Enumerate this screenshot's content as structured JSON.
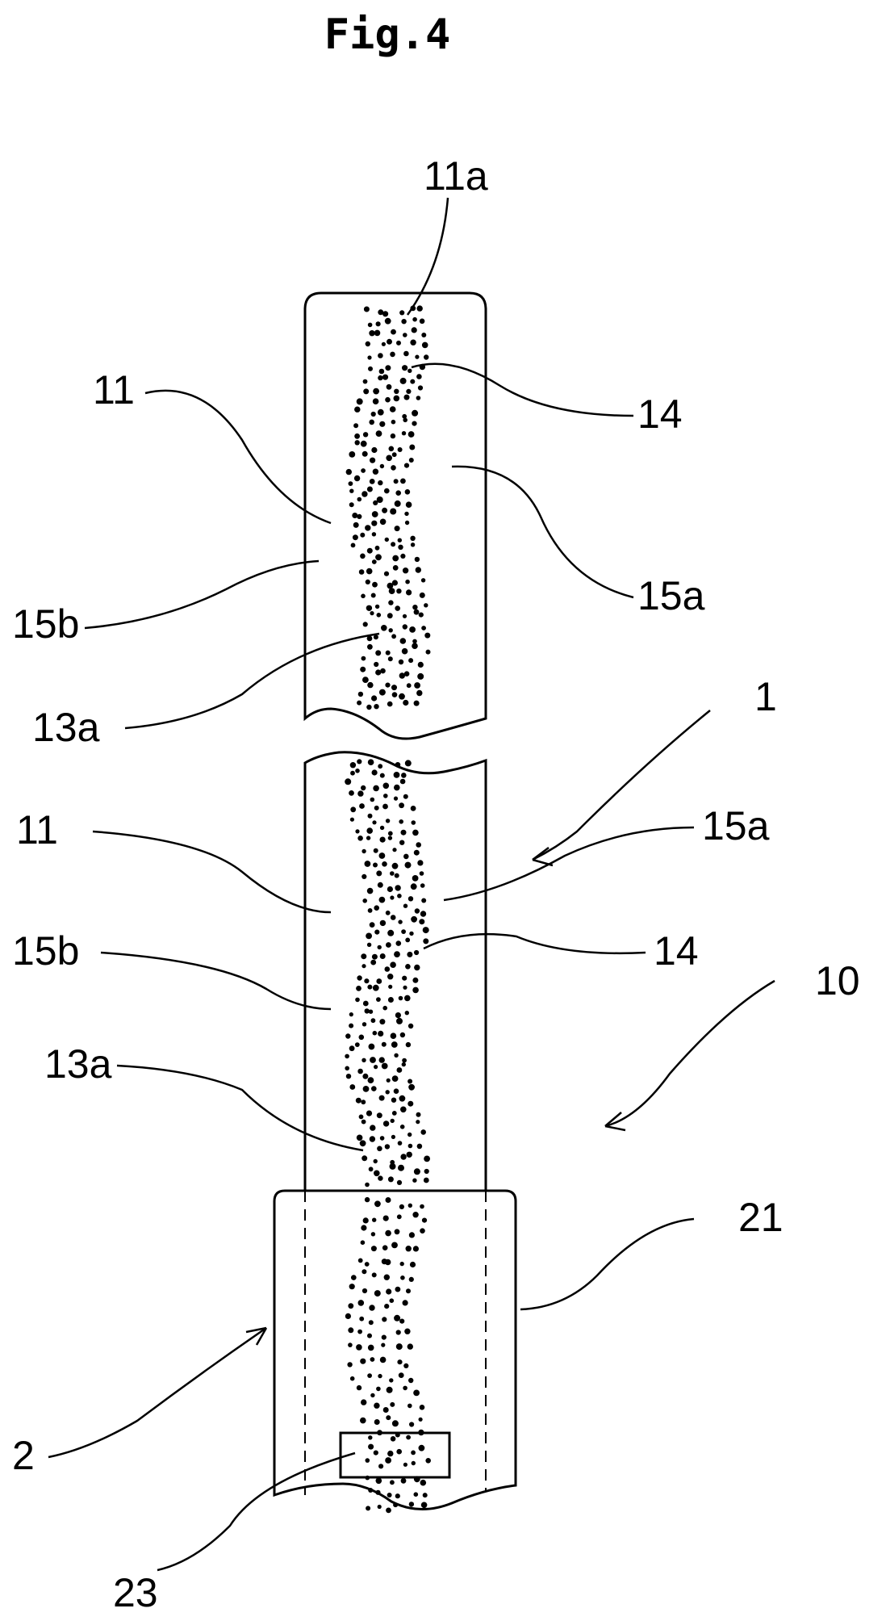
{
  "figure": {
    "title": "Fig.4",
    "labels": {
      "l11a": "11a",
      "l11_top": "11",
      "l14_top": "14",
      "l15a_top": "15a",
      "l15b_top": "15b",
      "l13a_top": "13a",
      "l1": "1",
      "l11_mid": "11",
      "l15a_mid": "15a",
      "l14_mid": "14",
      "l15b_mid": "15b",
      "l10": "10",
      "l13a_mid": "13a",
      "l21": "21",
      "l2": "2",
      "l23": "23"
    }
  }
}
